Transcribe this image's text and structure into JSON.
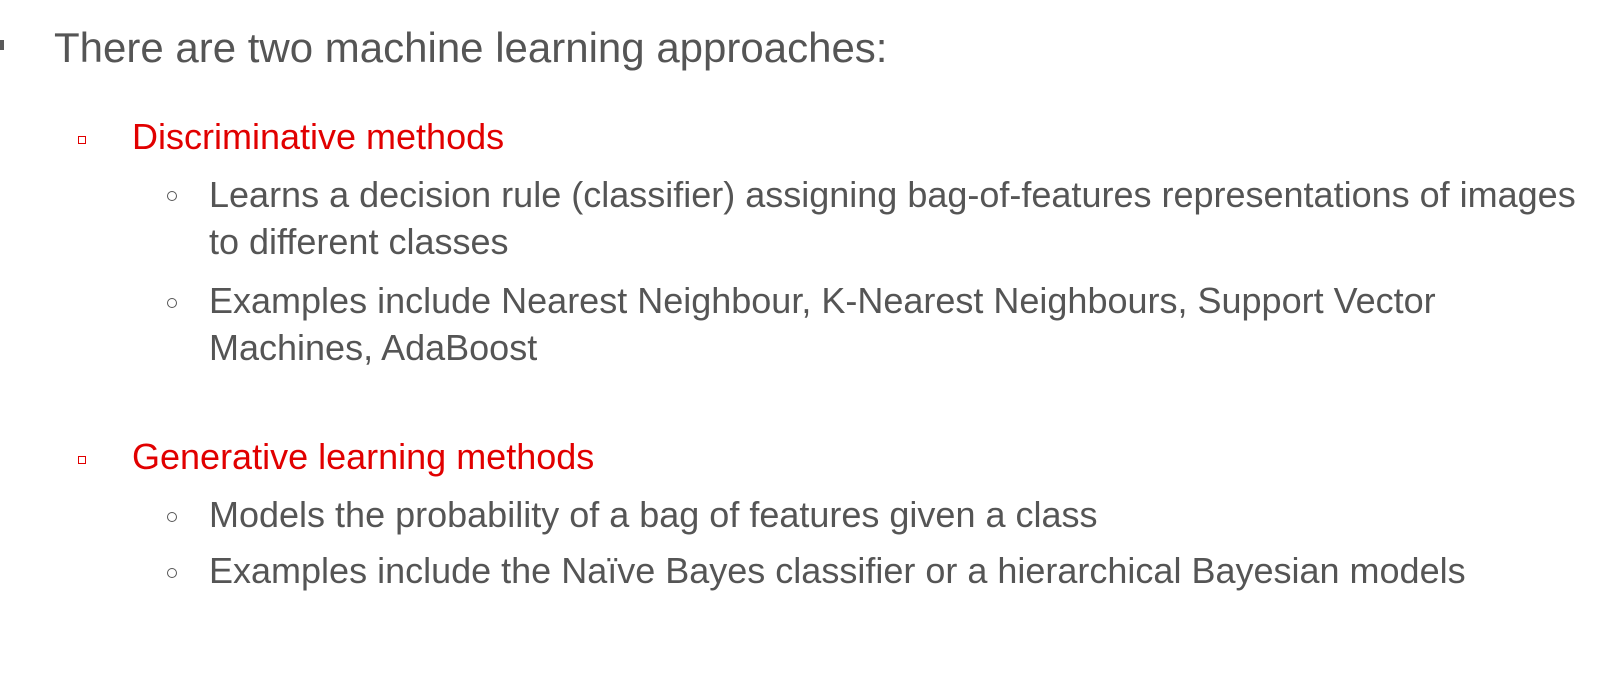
{
  "slide": {
    "intro": "There are two machine learning approaches:",
    "accent_color": "#e10000",
    "text_color": "#555555",
    "sections": [
      {
        "heading": "Discriminative methods",
        "points": [
          "Learns a decision rule (classifier) assigning bag-of-features representations of images to different classes",
          "Examples include Nearest Neighbour, K-Nearest Neighbours, Support Vector Machines, AdaBoost"
        ]
      },
      {
        "heading": "Generative learning methods",
        "points": [
          "Models the probability of a bag of features given a class",
          "Examples include the Naïve Bayes classifier or a hierarchical Bayesian models"
        ]
      }
    ]
  }
}
